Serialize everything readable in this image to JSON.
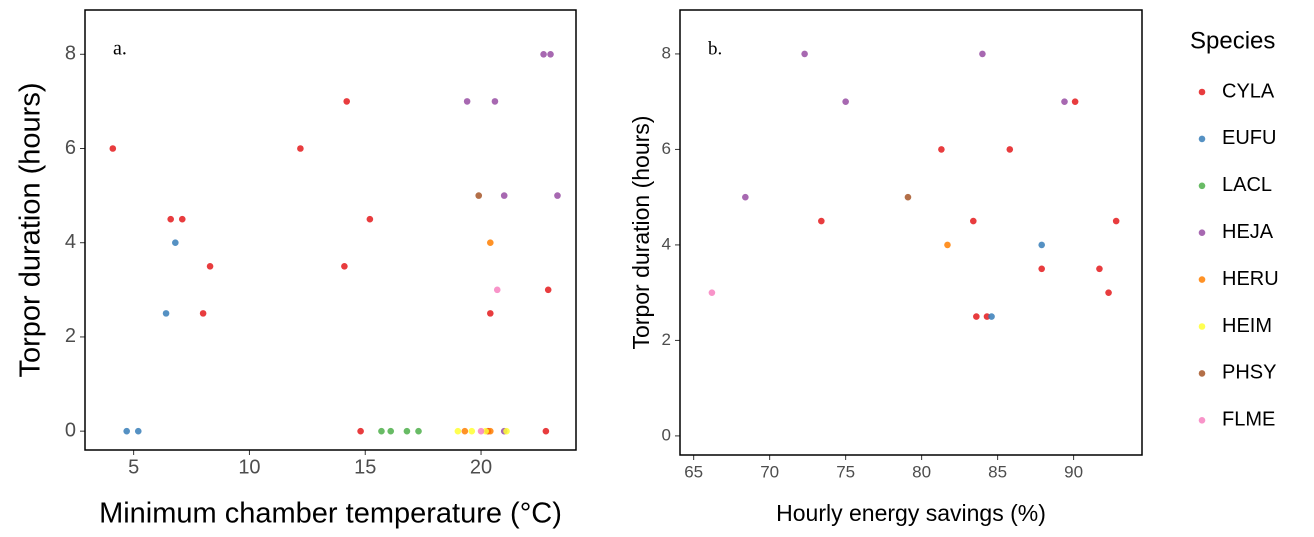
{
  "chart_data": [
    {
      "type": "scatter",
      "annotation": "a.",
      "x_label": "Minimum chamber temperature (°C)",
      "y_label": "Torpor duration (hours)",
      "legend_title": "Species",
      "xlim": [
        2.9,
        24.1
      ],
      "ylim": [
        -0.4,
        8.94
      ],
      "xticks": [
        5,
        10,
        15,
        20
      ],
      "yticks": [
        0,
        2,
        4,
        6,
        8
      ],
      "series": [
        {
          "name": "CYLA",
          "color": "#E41A1C",
          "x": [
            4.1,
            6.6,
            7.1,
            8.3,
            8.0,
            12.2,
            14.2,
            14.1,
            15.2,
            14.8,
            20.4,
            22.9,
            22.8,
            20.3
          ],
          "values": [
            6,
            4.5,
            4.5,
            3.5,
            2.5,
            6,
            7,
            3.5,
            4.5,
            0,
            2.5,
            3,
            0,
            0
          ]
        },
        {
          "name": "EUFU",
          "color": "#377EB8",
          "x": [
            4.7,
            5.2,
            6.4,
            6.8
          ],
          "values": [
            0,
            0,
            2.5,
            4
          ]
        },
        {
          "name": "LACL",
          "color": "#4DAF4A",
          "x": [
            15.7,
            16.1,
            16.8,
            17.3
          ],
          "values": [
            0,
            0,
            0,
            0
          ]
        },
        {
          "name": "HEJA",
          "color": "#984EA3",
          "x": [
            19.4,
            20.6,
            21.0,
            22.7,
            23.0,
            23.3,
            21.0
          ],
          "values": [
            7,
            7,
            5,
            8,
            8,
            5,
            0
          ]
        },
        {
          "name": "HERU",
          "color": "#FF7F00",
          "x": [
            20.4,
            19.3,
            20.4
          ],
          "values": [
            4,
            0,
            0
          ]
        },
        {
          "name": "HEIM",
          "color": "#FFFF33",
          "x": [
            19.0,
            19.6,
            20.2,
            21.1
          ],
          "values": [
            0,
            0,
            0,
            0
          ]
        },
        {
          "name": "PHSY",
          "color": "#A65628",
          "x": [
            19.9
          ],
          "values": [
            5
          ]
        },
        {
          "name": "FLME",
          "color": "#F781BF",
          "x": [
            20.7,
            20.0
          ],
          "values": [
            3,
            0
          ]
        }
      ]
    },
    {
      "type": "scatter",
      "annotation": "b.",
      "x_label": "Hourly energy savings (%)",
      "y_label": "Torpor duration (hours)",
      "xlim": [
        64.1,
        94.5
      ],
      "ylim": [
        -0.4,
        8.92
      ],
      "xticks": [
        65,
        70,
        75,
        80,
        85,
        90
      ],
      "yticks": [
        0,
        2,
        4,
        6,
        8
      ],
      "series": [
        {
          "color": "#E41A1C",
          "x": [
            81.3,
            85.8,
            90.1,
            73.4,
            83.4,
            92.8,
            87.9,
            91.7,
            92.3,
            83.6,
            84.3
          ],
          "values": [
            6,
            6,
            7,
            4.5,
            4.5,
            4.5,
            3.5,
            3.5,
            3,
            2.5,
            2.5
          ]
        },
        {
          "color": "#377EB8",
          "x": [
            87.9,
            84.6
          ],
          "values": [
            4,
            2.5
          ]
        },
        {
          "color": "#984EA3",
          "x": [
            72.3,
            84.0,
            75.0,
            89.4,
            68.4
          ],
          "values": [
            8,
            8,
            7,
            7,
            5
          ]
        },
        {
          "color": "#FF7F00",
          "x": [
            81.7
          ],
          "values": [
            4
          ]
        },
        {
          "color": "#A65628",
          "x": [
            79.1
          ],
          "values": [
            5
          ]
        },
        {
          "color": "#F781BF",
          "x": [
            66.2
          ],
          "values": [
            3
          ]
        }
      ]
    }
  ]
}
